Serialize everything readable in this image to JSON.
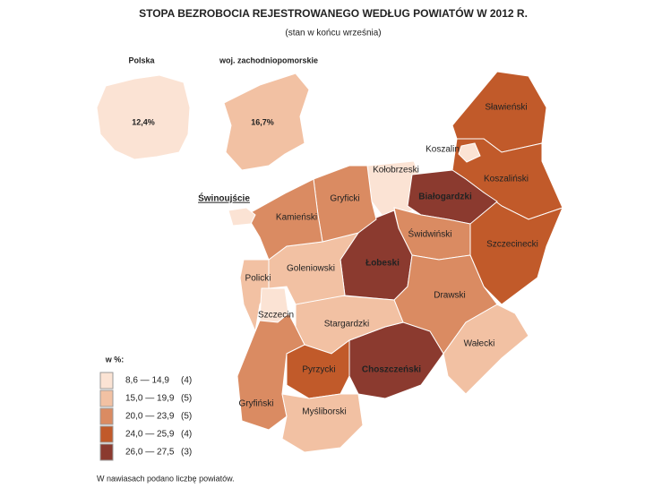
{
  "header": {
    "title": "STOPA BEZROBOCIA REJESTROWANEGO WEDŁUG POWIATÓW W 2012 R.",
    "subtitle": "(stan w końcu września)"
  },
  "insets": [
    {
      "name": "Polska",
      "value": "12,4%",
      "color": "#fbe3d4"
    },
    {
      "name": "woj. zachodniopomorskie",
      "value": "16,7%",
      "color": "#f2c1a3"
    }
  ],
  "counties": [
    {
      "name": "Sławieński",
      "color": "#c15a2a"
    },
    {
      "name": "Koszaliński",
      "color": "#c15a2a"
    },
    {
      "name": "Koszalin",
      "color": "#fbe3d4"
    },
    {
      "name": "Szczecinecki",
      "color": "#c15a2a"
    },
    {
      "name": "Kołobrzeski",
      "color": "#fbe3d4"
    },
    {
      "name": "Białogardzki",
      "color": "#8b3a2f"
    },
    {
      "name": "Świdwiński",
      "color": "#da8b62"
    },
    {
      "name": "Łobeski",
      "color": "#8b3a2f"
    },
    {
      "name": "Drawski",
      "color": "#da8b62"
    },
    {
      "name": "Wałecki",
      "color": "#f2c1a3"
    },
    {
      "name": "Choszczeński",
      "color": "#8b3a2f"
    },
    {
      "name": "Stargardzki",
      "color": "#f2c1a3"
    },
    {
      "name": "Goleniowski",
      "color": "#f2c1a3"
    },
    {
      "name": "Gryficki",
      "color": "#da8b62"
    },
    {
      "name": "Kamieński",
      "color": "#da8b62"
    },
    {
      "name": "Świnoujście",
      "color": "#fbe3d4"
    },
    {
      "name": "Policki",
      "color": "#f2c1a3"
    },
    {
      "name": "Szczecin",
      "color": "#fbe3d4"
    },
    {
      "name": "Gryfiński",
      "color": "#da8b62"
    },
    {
      "name": "Pyrzycki",
      "color": "#c15a2a"
    },
    {
      "name": "Myśliborski",
      "color": "#f2c1a3"
    }
  ],
  "legend": {
    "title": "w %:",
    "classes": [
      {
        "range": "8,6 — 14,9",
        "count": "(4)",
        "color": "#fbe3d4"
      },
      {
        "range": "15,0 — 19,9",
        "count": "(5)",
        "color": "#f2c1a3"
      },
      {
        "range": "20,0 — 23,9",
        "count": "(5)",
        "color": "#da8b62"
      },
      {
        "range": "24,0 — 25,9",
        "count": "(4)",
        "color": "#c15a2a"
      },
      {
        "range": "26,0 — 27,5",
        "count": "(3)",
        "color": "#8b3a2f"
      }
    ]
  },
  "footnote": "W nawiasach podano liczbę powiatów."
}
